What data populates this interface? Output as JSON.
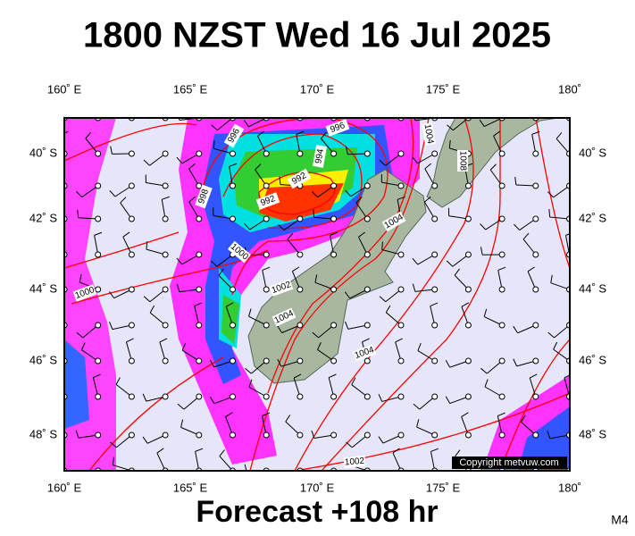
{
  "header": {
    "title": "1800 NZST Wed 16 Jul 2025"
  },
  "axes": {
    "top": [
      "160˚ E",
      "165˚ E",
      "170˚ E",
      "175˚ E",
      "180˚"
    ],
    "bottom": [
      "160˚ E",
      "165˚ E",
      "170˚ E",
      "175˚ E",
      "180˚"
    ],
    "left": [
      "40˚ S",
      "42˚ S",
      "44˚ S",
      "46˚ S",
      "48˚ S"
    ],
    "right": [
      "40˚ S",
      "42˚ S",
      "44˚ S",
      "46˚ S",
      "48˚ S"
    ]
  },
  "isobar_labels": [
    "996",
    "996",
    "994",
    "992",
    "992",
    "998",
    "1000",
    "1000",
    "1002",
    "1004",
    "1004",
    "1004",
    "1008",
    "1004",
    "1002"
  ],
  "footer": {
    "forecast": "Forecast +108 hr",
    "model": "M4",
    "copyright": "Copyright metvuw.com"
  }
}
